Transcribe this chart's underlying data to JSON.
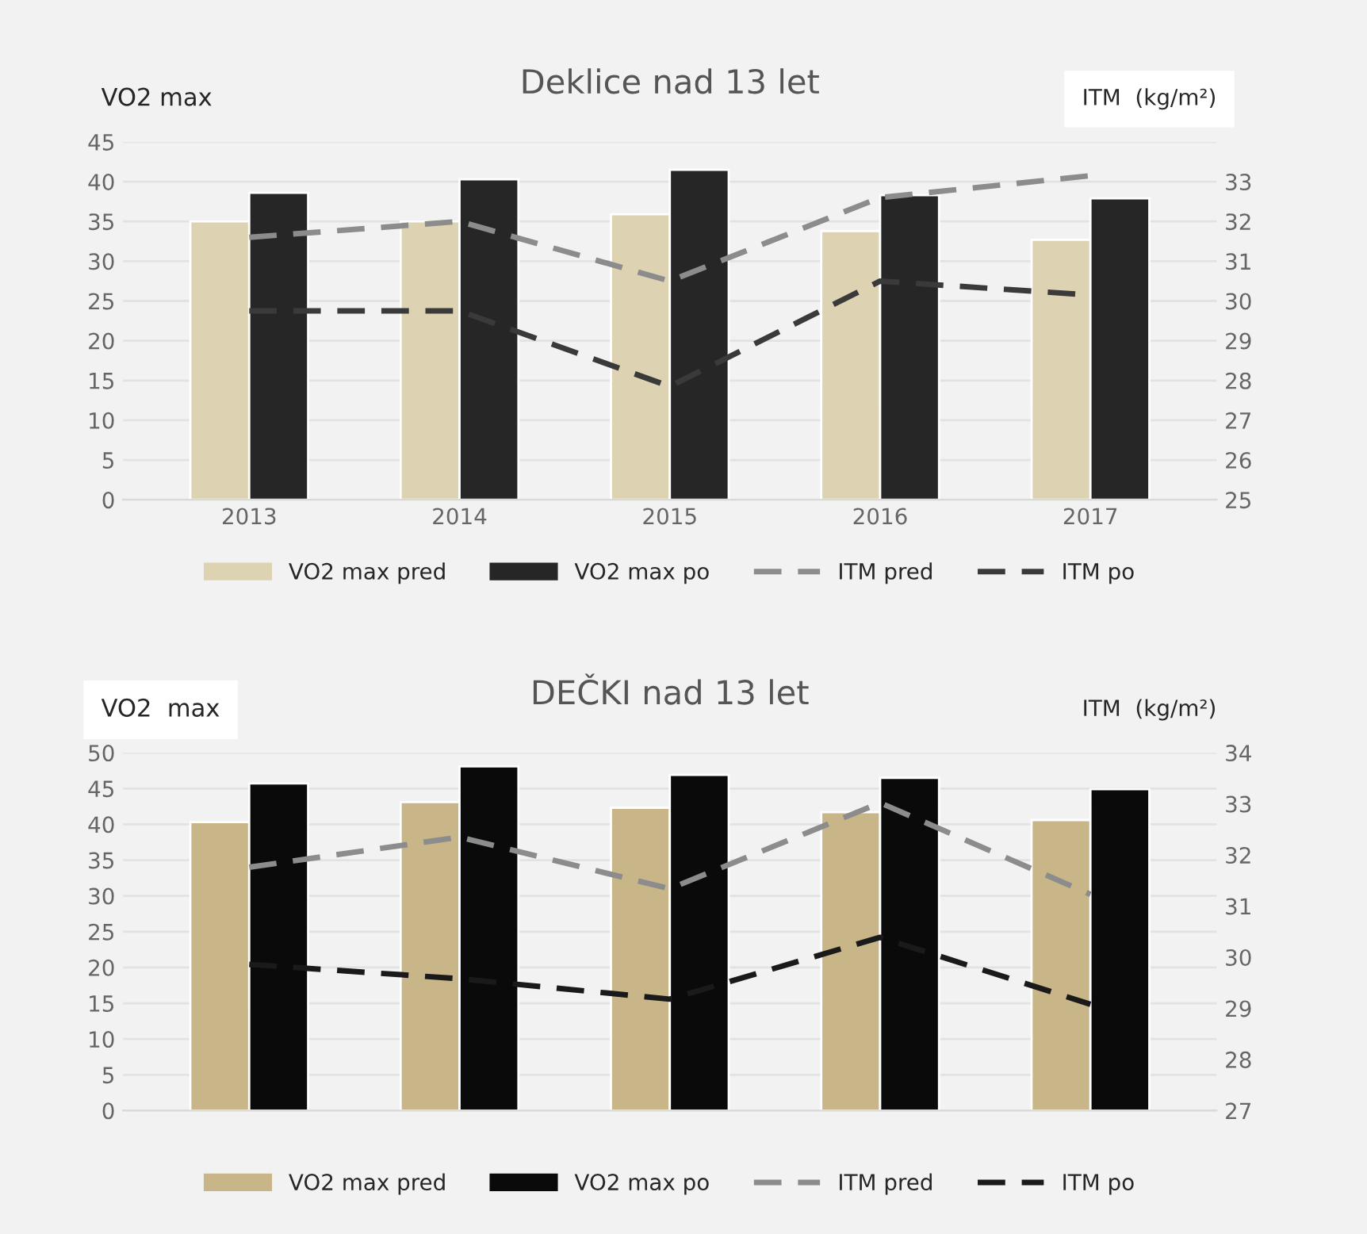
{
  "chart_data": [
    {
      "type": "bar",
      "title": "Deklice nad 13 let",
      "ylabel": "VO2 max",
      "y2label": "ITM  (kg/m²)",
      "categories": [
        "2013",
        "2014",
        "2015",
        "2016",
        "2017"
      ],
      "series": [
        {
          "name": "VO2 max pred",
          "color": "#ddd3b2",
          "values": [
            35.0,
            35.0,
            35.9,
            33.8,
            32.7
          ]
        },
        {
          "name": "VO2 max po",
          "color": "#262626",
          "values": [
            38.6,
            40.3,
            41.5,
            38.3,
            37.9
          ]
        },
        {
          "name": "ITM pred",
          "type": "line",
          "axis": "y2",
          "line_style": "dashed",
          "color": "#8c8c8c",
          "values": [
            31.6,
            32.0,
            30.5,
            32.6,
            33.15
          ]
        },
        {
          "name": "ITM po",
          "type": "line",
          "axis": "y2",
          "line_style": "dashed",
          "color": "#3a3a3a",
          "values": [
            29.75,
            29.75,
            27.85,
            30.5,
            30.15
          ]
        }
      ],
      "ylim": [
        0,
        45
      ],
      "yticks": [
        0,
        5,
        10,
        15,
        20,
        25,
        30,
        35,
        40,
        45
      ],
      "y2lim": [
        25,
        34
      ],
      "y2ticks": [
        25,
        26,
        27,
        28,
        29,
        30,
        31,
        32,
        33
      ],
      "grid": "y",
      "legend": "bottom"
    },
    {
      "type": "bar",
      "title": "DEČKI nad 13 let",
      "ylabel": "VO2  max",
      "y2label": "ITM  (kg/m²)",
      "categories": [
        null,
        null,
        null,
        null,
        null
      ],
      "series": [
        {
          "name": "VO2 max pred",
          "color": "#c9b688",
          "values": [
            40.3,
            43.1,
            42.3,
            41.7,
            40.6
          ]
        },
        {
          "name": "VO2 max po",
          "color": "#0a0a0a",
          "values": [
            45.7,
            48.1,
            46.9,
            46.5,
            44.9
          ]
        },
        {
          "name": "ITM pred",
          "type": "line",
          "axis": "y2",
          "line_style": "dashed",
          "color": "#8c8c8c",
          "values": [
            31.76,
            32.35,
            31.34,
            33.02,
            31.23
          ]
        },
        {
          "name": "ITM po",
          "type": "line",
          "axis": "y2",
          "line_style": "dashed",
          "color": "#1a1a1a",
          "values": [
            29.86,
            29.58,
            29.18,
            30.39,
            29.08
          ]
        }
      ],
      "ylim": [
        0,
        50
      ],
      "yticks": [
        0,
        5,
        10,
        15,
        20,
        25,
        30,
        35,
        40,
        45,
        50
      ],
      "y2lim": [
        27,
        34
      ],
      "y2ticks": [
        27,
        28,
        29,
        30,
        31,
        32,
        33,
        34
      ],
      "grid": "y",
      "legend": "bottom"
    }
  ]
}
